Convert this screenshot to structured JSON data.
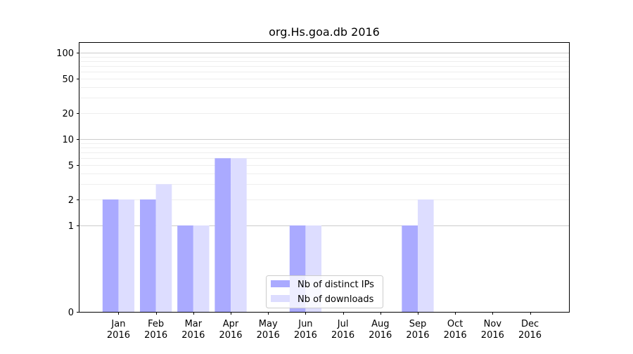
{
  "chart_data": {
    "type": "bar",
    "title": "org.Hs.goa.db 2016",
    "xlabel": "",
    "ylabel": "",
    "y_scale": "symlog",
    "ylim": [
      0,
      130
    ],
    "y_ticks": [
      0,
      1,
      2,
      5,
      10,
      20,
      50,
      100
    ],
    "categories": [
      [
        "Jan",
        "2016"
      ],
      [
        "Feb",
        "2016"
      ],
      [
        "Mar",
        "2016"
      ],
      [
        "Apr",
        "2016"
      ],
      [
        "May",
        "2016"
      ],
      [
        "Jun",
        "2016"
      ],
      [
        "Jul",
        "2016"
      ],
      [
        "Aug",
        "2016"
      ],
      [
        "Sep",
        "2016"
      ],
      [
        "Oct",
        "2016"
      ],
      [
        "Nov",
        "2016"
      ],
      [
        "Dec",
        "2016"
      ]
    ],
    "series": [
      {
        "name": "Nb of distinct IPs",
        "color": "#aaaaff",
        "values": [
          2,
          2,
          1,
          6,
          0,
          1,
          0,
          0,
          1,
          0,
          0,
          0
        ]
      },
      {
        "name": "Nb of downloads",
        "color": "#ddddff",
        "values": [
          2,
          3,
          1,
          6,
          0,
          1,
          0,
          0,
          2,
          0,
          0,
          0
        ]
      }
    ],
    "grid": true,
    "legend_position": "lower-center"
  }
}
